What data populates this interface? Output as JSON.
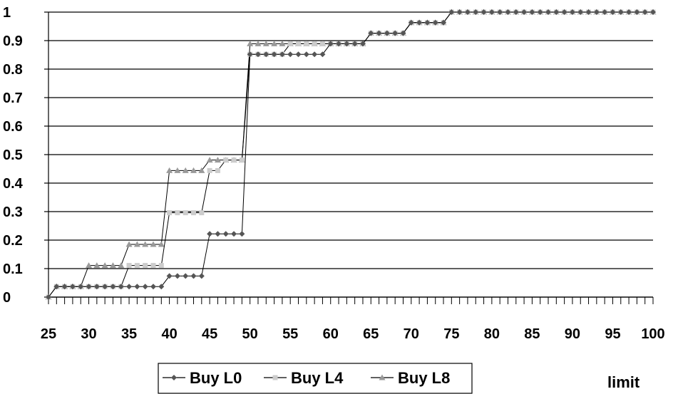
{
  "chart_data": {
    "type": "line",
    "title": "",
    "xlabel": "limit",
    "ylabel": "",
    "xlim": [
      25,
      100
    ],
    "ylim": [
      0,
      1
    ],
    "x_ticks": [
      25,
      30,
      35,
      40,
      45,
      50,
      55,
      60,
      65,
      70,
      75,
      80,
      85,
      90,
      95,
      100
    ],
    "y_ticks": [
      "0",
      "0.1",
      "0.2",
      "0.3",
      "0.4",
      "0.5",
      "0.6",
      "0.7",
      "0.8",
      "0.9",
      "1"
    ],
    "grid": "horizontal",
    "legend": "bottom",
    "series": [
      {
        "name": "Buy L0",
        "color": "#555555",
        "marker": "diamond",
        "steps": [
          [
            25,
            0
          ],
          [
            26,
            0.037
          ],
          [
            40,
            0.074
          ],
          [
            45,
            0.222
          ],
          [
            50,
            0.852
          ],
          [
            60,
            0.889
          ],
          [
            65,
            0.926
          ],
          [
            70,
            0.963
          ],
          [
            75,
            1
          ]
        ]
      },
      {
        "name": "Buy L4",
        "color": "#cccccc",
        "marker": "square",
        "steps": [
          [
            25,
            0
          ],
          [
            26,
            0.037
          ],
          [
            35,
            0.111
          ],
          [
            40,
            0.296
          ],
          [
            45,
            0.444
          ],
          [
            47,
            0.481
          ],
          [
            50,
            0.852
          ],
          [
            55,
            0.889
          ],
          [
            65,
            0.926
          ],
          [
            70,
            0.963
          ],
          [
            75,
            1
          ]
        ]
      },
      {
        "name": "Buy L8",
        "color": "#999999",
        "marker": "triangle",
        "steps": [
          [
            25,
            0
          ],
          [
            26,
            0.037
          ],
          [
            30,
            0.111
          ],
          [
            35,
            0.185
          ],
          [
            40,
            0.444
          ],
          [
            45,
            0.481
          ],
          [
            50,
            0.889
          ],
          [
            65,
            0.926
          ],
          [
            70,
            0.963
          ],
          [
            75,
            1
          ]
        ]
      }
    ]
  }
}
